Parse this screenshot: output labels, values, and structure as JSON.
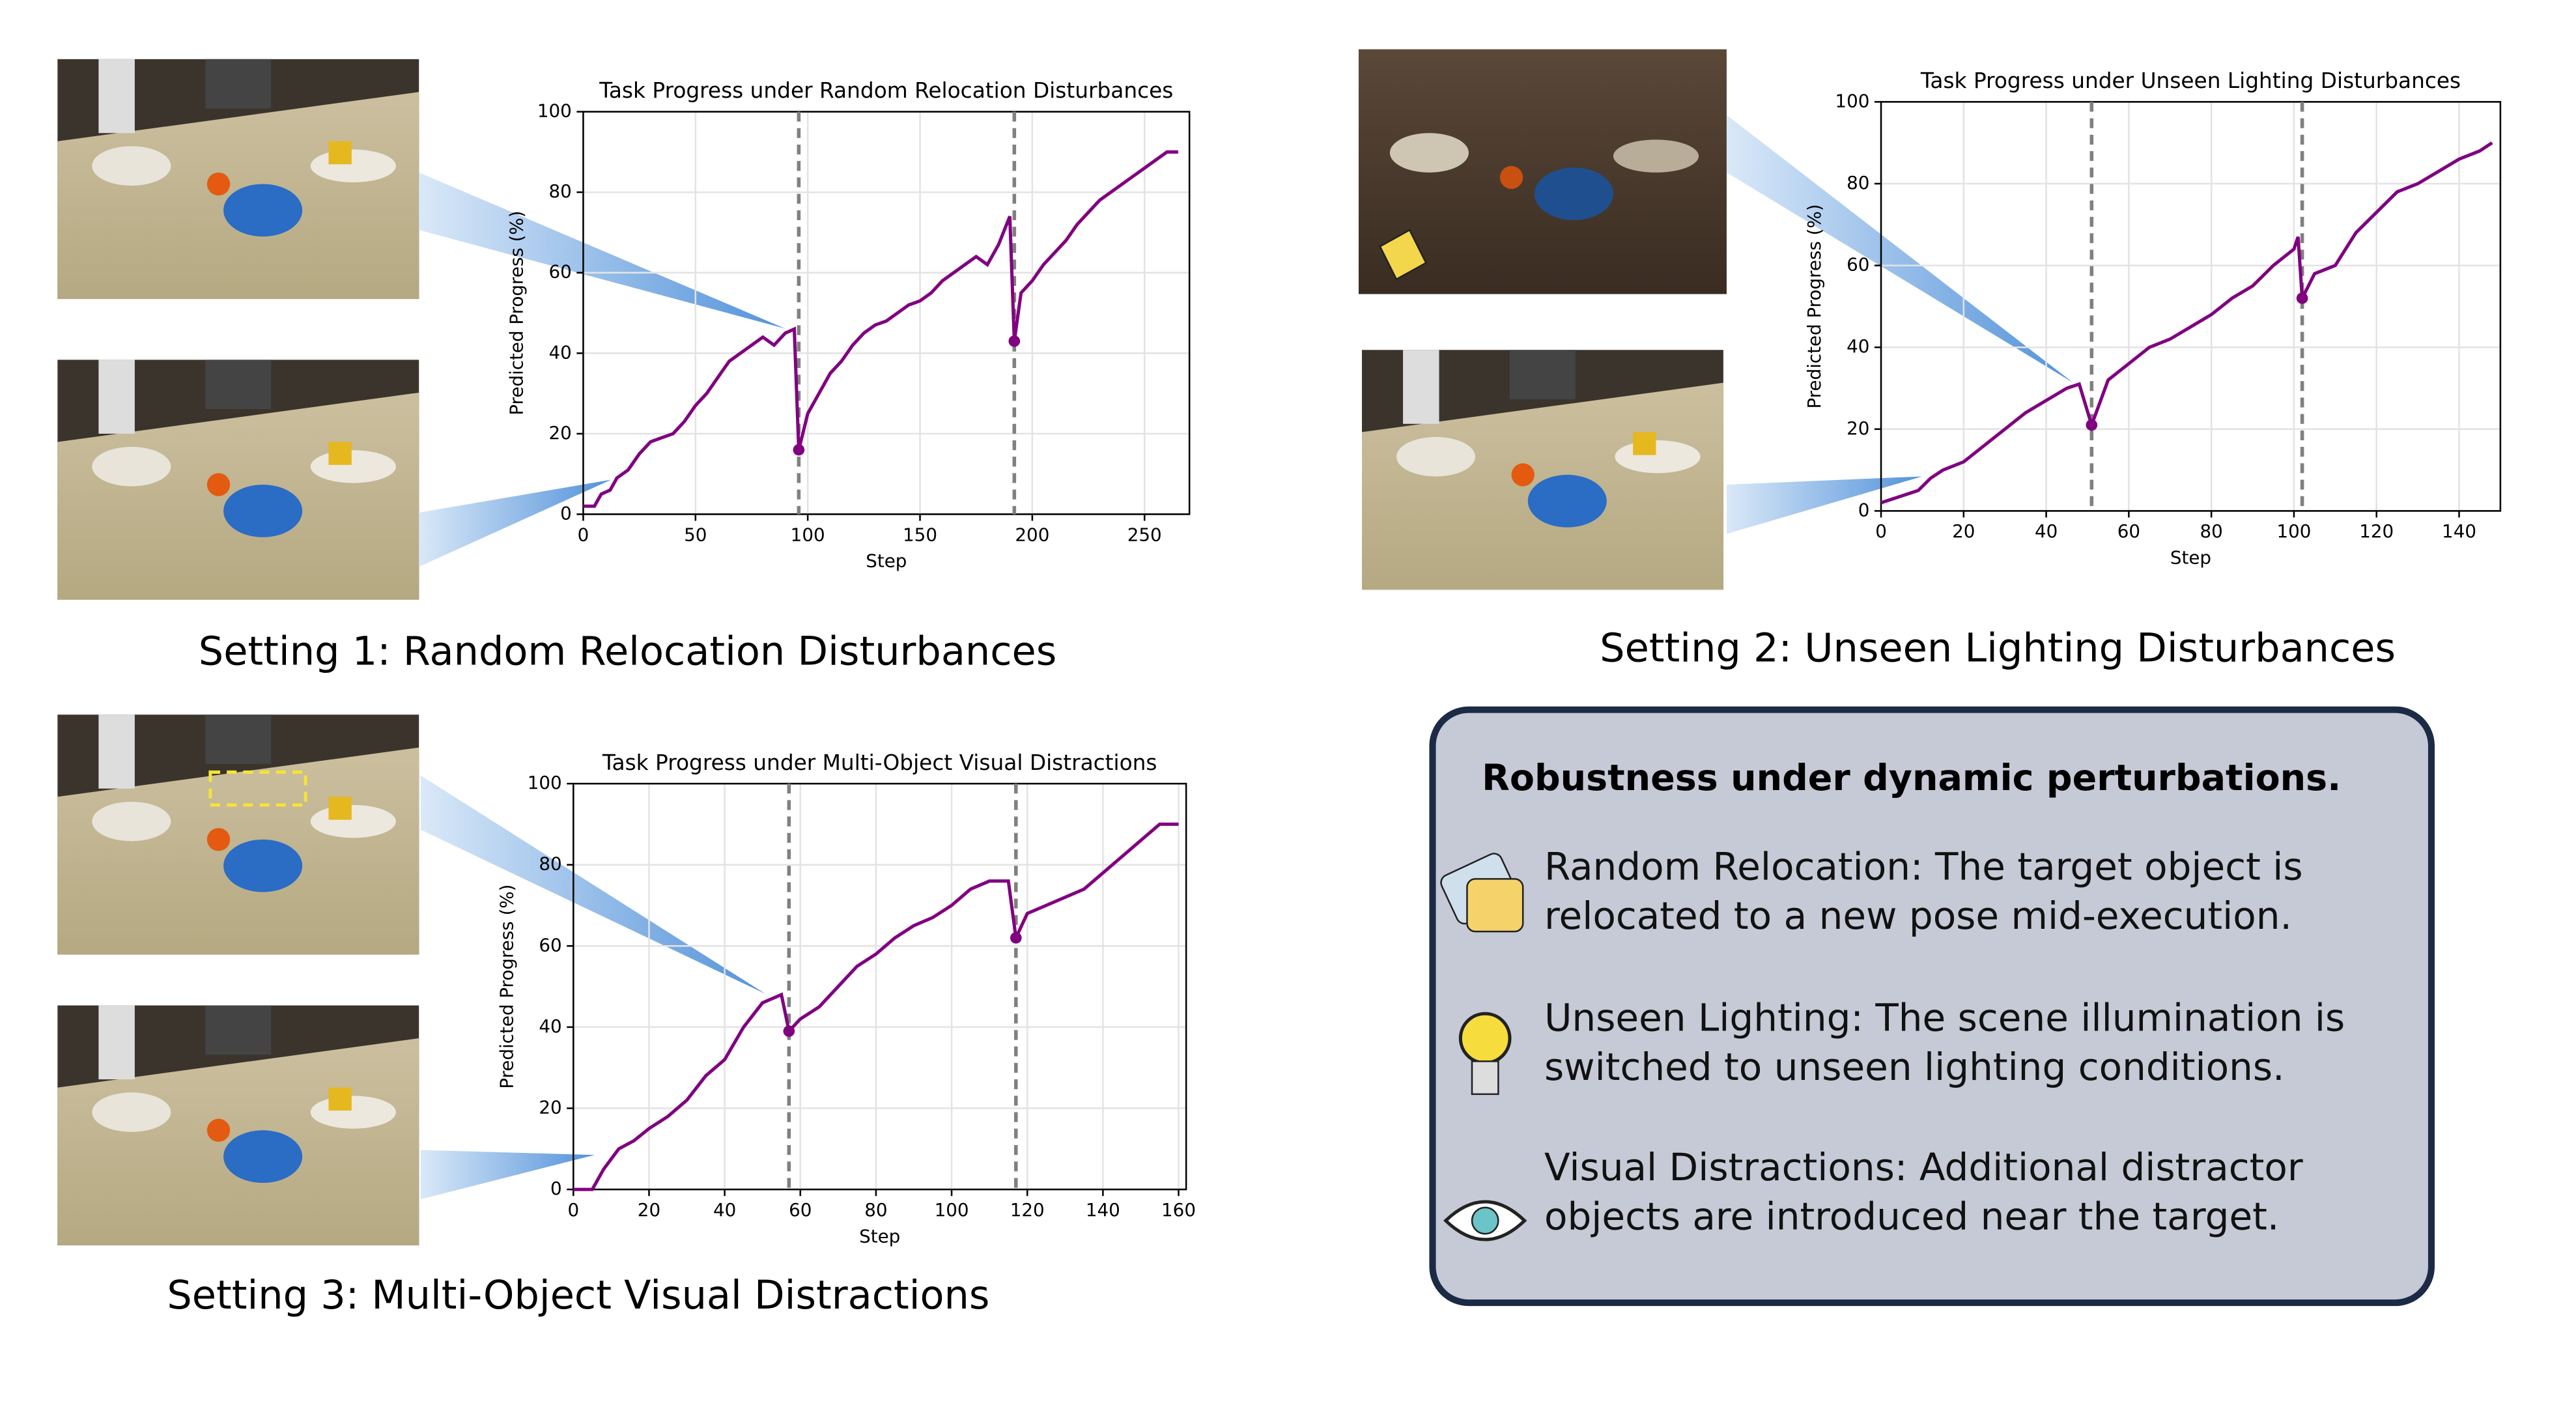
{
  "chart_data": [
    {
      "type": "line",
      "title": "Task Progress under Random Relocation Disturbances",
      "xlabel": "Step",
      "ylabel": "Predicted Progress (%)",
      "x": [
        0,
        5,
        8,
        12,
        15,
        20,
        25,
        30,
        35,
        40,
        45,
        50,
        55,
        60,
        65,
        70,
        75,
        80,
        85,
        90,
        94,
        96,
        100,
        105,
        110,
        115,
        120,
        125,
        130,
        135,
        140,
        145,
        150,
        155,
        160,
        165,
        170,
        175,
        180,
        185,
        190,
        192,
        195,
        200,
        205,
        210,
        215,
        220,
        225,
        230,
        235,
        240,
        245,
        250,
        255,
        260,
        265
      ],
      "values": [
        2,
        2,
        5,
        6,
        9,
        11,
        15,
        18,
        19,
        20,
        23,
        27,
        30,
        34,
        38,
        40,
        42,
        44,
        42,
        45,
        46,
        16,
        25,
        30,
        35,
        38,
        42,
        45,
        47,
        48,
        50,
        52,
        53,
        55,
        58,
        60,
        62,
        64,
        62,
        67,
        74,
        43,
        55,
        58,
        62,
        65,
        68,
        72,
        75,
        78,
        80,
        82,
        84,
        86,
        88,
        90,
        90
      ],
      "color": "#800080",
      "vlines": [
        96,
        192
      ],
      "xlim": [
        0,
        270
      ],
      "ylim": [
        0,
        100
      ],
      "xticks": [
        0,
        50,
        100,
        150,
        200,
        250
      ],
      "yticks": [
        0,
        20,
        40,
        60,
        80,
        100
      ],
      "grid": true
    },
    {
      "type": "line",
      "title": "Task Progress under Unseen Lighting Disturbances",
      "xlabel": "Step",
      "ylabel": "Predicted Progress (%)",
      "x": [
        0,
        3,
        6,
        9,
        12,
        15,
        20,
        25,
        30,
        35,
        40,
        45,
        48,
        51,
        55,
        60,
        65,
        70,
        75,
        80,
        85,
        90,
        95,
        100,
        101,
        102,
        105,
        110,
        115,
        120,
        125,
        130,
        135,
        140,
        145,
        148
      ],
      "values": [
        2,
        3,
        4,
        5,
        8,
        10,
        12,
        16,
        20,
        24,
        27,
        30,
        31,
        21,
        32,
        36,
        40,
        42,
        45,
        48,
        52,
        55,
        60,
        64,
        67,
        52,
        58,
        60,
        68,
        73,
        78,
        80,
        83,
        86,
        88,
        90
      ],
      "color": "#800080",
      "vlines": [
        51,
        102
      ],
      "xlim": [
        0,
        150
      ],
      "ylim": [
        0,
        100
      ],
      "xticks": [
        0,
        20,
        40,
        60,
        80,
        100,
        120,
        140
      ],
      "yticks": [
        0,
        20,
        40,
        60,
        80,
        100
      ],
      "grid": true
    },
    {
      "type": "line",
      "title": "Task Progress under Multi-Object Visual Distractions",
      "xlabel": "Step",
      "ylabel": "Predicted Progress (%)",
      "x": [
        0,
        5,
        8,
        12,
        16,
        20,
        25,
        30,
        35,
        40,
        45,
        50,
        55,
        57,
        60,
        65,
        70,
        75,
        80,
        85,
        90,
        95,
        100,
        105,
        110,
        115,
        117,
        120,
        125,
        130,
        135,
        140,
        145,
        150,
        155,
        160
      ],
      "values": [
        0,
        0,
        5,
        10,
        12,
        15,
        18,
        22,
        28,
        32,
        40,
        46,
        48,
        39,
        42,
        45,
        50,
        55,
        58,
        62,
        65,
        67,
        70,
        74,
        76,
        76,
        62,
        68,
        70,
        72,
        74,
        78,
        82,
        86,
        90,
        90
      ],
      "color": "#800080",
      "vlines": [
        57,
        117
      ],
      "xlim": [
        0,
        162
      ],
      "ylim": [
        0,
        100
      ],
      "xticks": [
        0,
        20,
        40,
        60,
        80,
        100,
        120,
        140,
        160
      ],
      "yticks": [
        0,
        20,
        40,
        60,
        80,
        100
      ],
      "grid": true
    }
  ],
  "settings": [
    "Setting 1: Random Relocation Disturbances",
    "Setting 2: Unseen Lighting Disturbances",
    "Setting 3: Multi-Object Visual Distractions"
  ],
  "panel": {
    "title": "Robustness under dynamic perturbations.",
    "items": [
      {
        "lines": [
          "Random Relocation: The target object is",
          "relocated to a new pose mid-execution."
        ]
      },
      {
        "lines": [
          "Unseen Lighting: The scene illumination is",
          "switched to unseen lighting conditions."
        ]
      },
      {
        "lines": [
          "Visual Distractions: Additional distractor",
          "objects are introduced near the target."
        ]
      }
    ]
  }
}
